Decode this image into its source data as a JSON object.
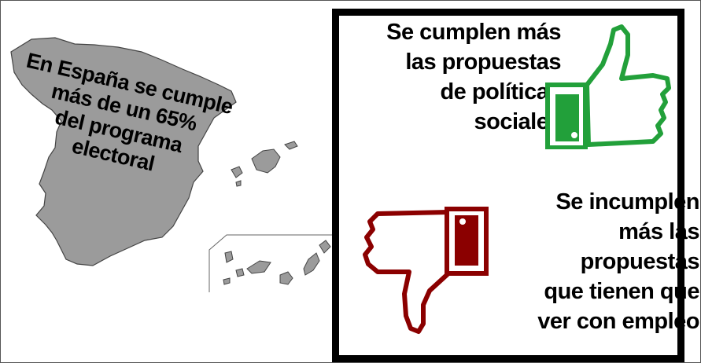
{
  "map": {
    "headline_lines": [
      "En España se cumple",
      "más de un 65%",
      "del programa",
      "electoral"
    ]
  },
  "panel": {
    "top_lines": [
      "Se cumplen más",
      "las propuestas",
      "de políticas",
      "sociales"
    ],
    "bottom_lines": [
      "Se incumplen",
      "más las",
      "propuestas",
      "que tienen que",
      "ver con empleo"
    ]
  },
  "colors": {
    "map_fill": "#9b9b9b",
    "thumb_up": "#22a03a",
    "thumb_down": "#8b0000",
    "frame": "#000000"
  },
  "icons": {
    "thumb_up": "thumbs-up-icon",
    "thumb_down": "thumbs-down-icon"
  }
}
